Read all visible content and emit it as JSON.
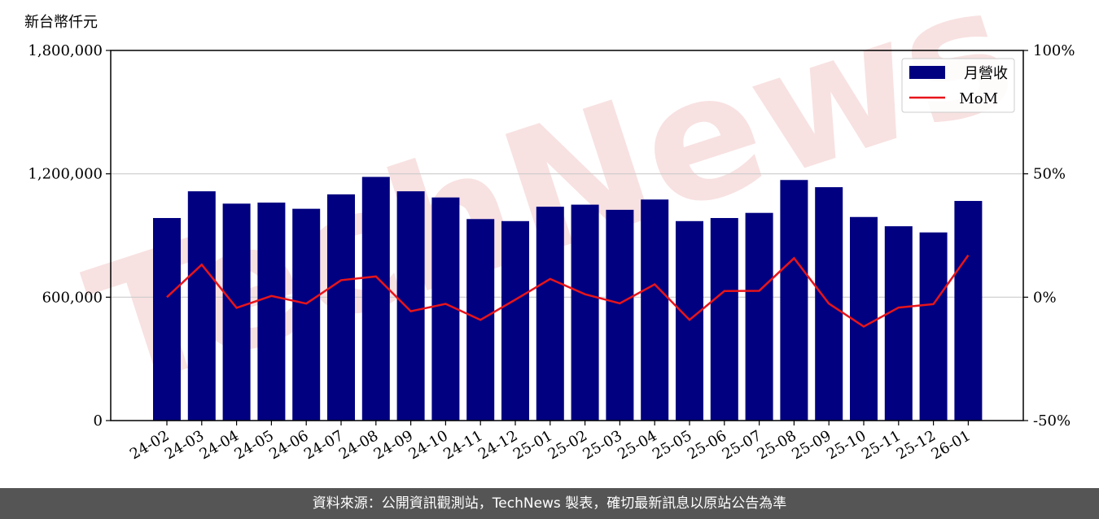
{
  "unit_label": "新台幣仟元",
  "footer": {
    "source": "資料來源：公開資訊觀測站，TechNews 製表，確切最新訊息以原站公告為準"
  },
  "watermark": {
    "text": "TechNews"
  },
  "colors": {
    "bar": "#000080",
    "line": "#e8141a",
    "grid": "#cccccc",
    "footer_bg": "#555555",
    "watermark": "#f4c9c9"
  },
  "chart_data": {
    "type": "bar",
    "categories": [
      "24-02",
      "24-03",
      "24-04",
      "24-05",
      "24-06",
      "24-07",
      "24-08",
      "24-09",
      "24-10",
      "24-11",
      "24-12",
      "25-01",
      "25-02",
      "25-03",
      "25-04",
      "25-05",
      "25-06",
      "25-07",
      "25-08",
      "25-09",
      "25-10",
      "25-11",
      "25-12",
      "26-01"
    ],
    "series": [
      {
        "name": "月營收",
        "type": "bar",
        "axis": "left",
        "values": [
          985000,
          1115000,
          1055000,
          1060000,
          1030000,
          1100000,
          1185000,
          1115000,
          1085000,
          980000,
          970000,
          1040000,
          1050000,
          1025000,
          1075000,
          970000,
          985000,
          1010000,
          1170000,
          1135000,
          990000,
          945000,
          915000,
          1068000
        ]
      },
      {
        "name": "MoM",
        "type": "line",
        "axis": "right",
        "values": [
          0.0,
          13.2,
          -4.3,
          0.5,
          -2.6,
          6.9,
          8.4,
          -5.7,
          -2.7,
          -9.2,
          -1.0,
          7.4,
          1.2,
          -2.5,
          5.2,
          -9.2,
          2.5,
          2.6,
          15.8,
          -2.6,
          -11.9,
          -4.2,
          -2.8,
          17.0
        ]
      }
    ],
    "left_axis": {
      "min": 0,
      "max": 1800000,
      "ticks": [
        0,
        600000,
        1200000,
        1800000
      ],
      "tick_labels": [
        "0",
        "600,000",
        "1,200,000",
        "1,800,000"
      ]
    },
    "right_axis": {
      "min": -50,
      "max": 100,
      "ticks": [
        -50,
        0,
        50,
        100
      ],
      "tick_labels": [
        "-50%",
        "0%",
        "50%",
        "100%"
      ]
    },
    "grid": true,
    "legend_placement": "top-right"
  }
}
